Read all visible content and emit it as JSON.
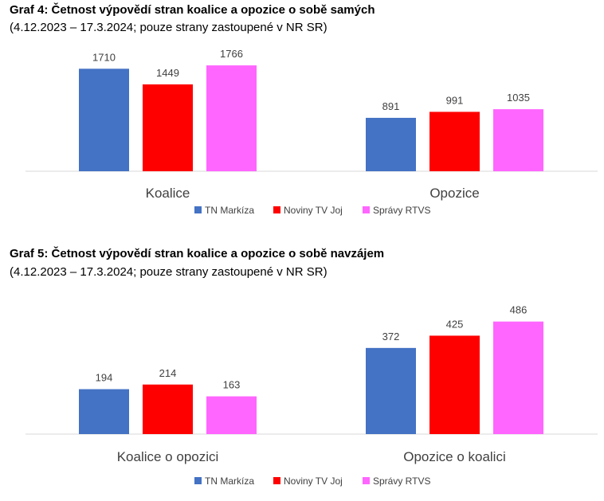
{
  "chart_data": [
    {
      "type": "bar",
      "title": "Graf 4: Četnost výpovědí stran koalice a opozice o sobě samých",
      "subtitle": "(4.12.2023 – 17.3.2024; pouze strany zastoupené v NR SR)",
      "categories": [
        "Koalice",
        "Opozice"
      ],
      "series": [
        {
          "name": "TN Markíza",
          "values": [
            1710,
            891
          ],
          "color": "#4472C4"
        },
        {
          "name": "Noviny TV Joj",
          "values": [
            1449,
            991
          ],
          "color": "#FF0000"
        },
        {
          "name": "Správy RTVS",
          "values": [
            1766,
            1035
          ],
          "color": "#FF66FF"
        }
      ],
      "ylim": [
        0,
        1900
      ],
      "grid": false,
      "legend": "bottom"
    },
    {
      "type": "bar",
      "title": "Graf 5: Četnost výpovědí stran koalice a opozice o sobě navzájem",
      "subtitle": "(4.12.2023 – 17.3.2024; pouze strany zastoupené v NR SR)",
      "categories": [
        "Koalice o opozici",
        "Opozice o koalici"
      ],
      "series": [
        {
          "name": "TN Markíza",
          "values": [
            194,
            372
          ],
          "color": "#4472C4"
        },
        {
          "name": "Noviny TV Joj",
          "values": [
            214,
            425
          ],
          "color": "#FF0000"
        },
        {
          "name": "Správy RTVS",
          "values": [
            163,
            486
          ],
          "color": "#FF66FF"
        }
      ],
      "ylim": [
        0,
        540
      ],
      "grid": false,
      "legend": "bottom"
    }
  ]
}
